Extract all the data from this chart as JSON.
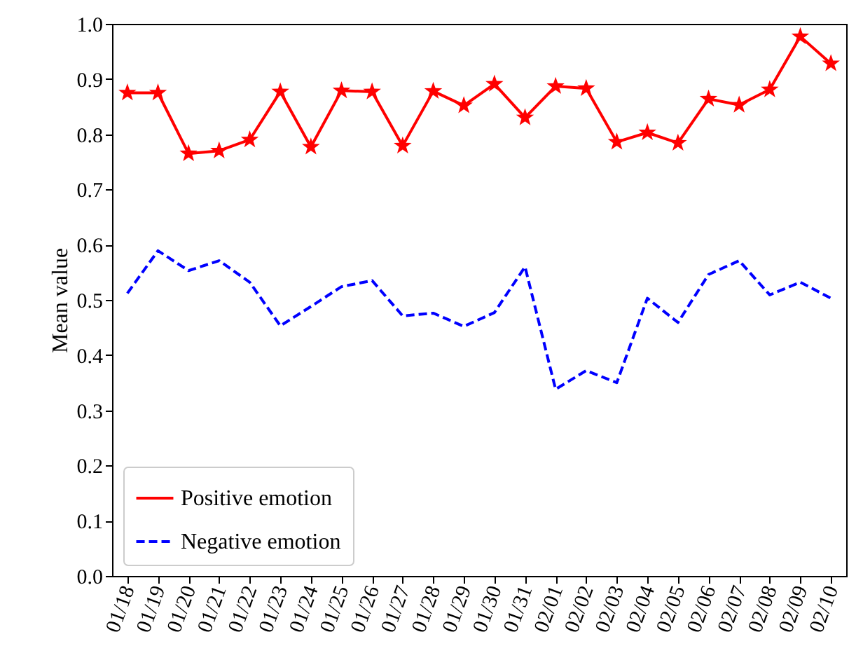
{
  "chart_data": {
    "type": "line",
    "ylabel": "Mean value",
    "categories": [
      "01/18",
      "01/19",
      "01/20",
      "01/21",
      "01/22",
      "01/23",
      "01/24",
      "01/25",
      "01/26",
      "01/27",
      "01/28",
      "01/29",
      "01/30",
      "01/31",
      "02/01",
      "02/02",
      "02/03",
      "02/04",
      "02/05",
      "02/06",
      "02/07",
      "02/08",
      "02/09",
      "02/10"
    ],
    "series": [
      {
        "name": "Positive emotion",
        "color": "#ff0000",
        "marker": "star",
        "line_style": "solid",
        "values": [
          0.875,
          0.875,
          0.765,
          0.77,
          0.79,
          0.877,
          0.777,
          0.879,
          0.877,
          0.779,
          0.878,
          0.852,
          0.891,
          0.83,
          0.887,
          0.883,
          0.786,
          0.803,
          0.784,
          0.864,
          0.853,
          0.881,
          0.977,
          0.928
        ]
      },
      {
        "name": "Negative emotion",
        "color": "#0000ff",
        "marker": "none",
        "line_style": "dashed",
        "values": [
          0.512,
          0.589,
          0.553,
          0.571,
          0.532,
          0.453,
          0.488,
          0.524,
          0.535,
          0.471,
          0.476,
          0.452,
          0.477,
          0.56,
          0.338,
          0.372,
          0.35,
          0.503,
          0.459,
          0.546,
          0.571,
          0.509,
          0.532,
          0.503
        ]
      }
    ],
    "ylim": [
      0,
      1
    ],
    "yticks": [
      {
        "value": 0,
        "label": "0.0"
      },
      {
        "value": 0.1,
        "label": "0.1"
      },
      {
        "value": 0.2,
        "label": "0.2"
      },
      {
        "value": 0.3,
        "label": "0.3"
      },
      {
        "value": 0.4,
        "label": "0.4"
      },
      {
        "value": 0.5,
        "label": "0.5"
      },
      {
        "value": 0.6,
        "label": "0.6"
      },
      {
        "value": 0.7,
        "label": "0.7"
      },
      {
        "value": 0.8,
        "label": "0.8"
      },
      {
        "value": 0.9,
        "label": "0.9"
      },
      {
        "value": 1,
        "label": "1.0"
      }
    ],
    "grid": false,
    "legend": "bottom left"
  }
}
